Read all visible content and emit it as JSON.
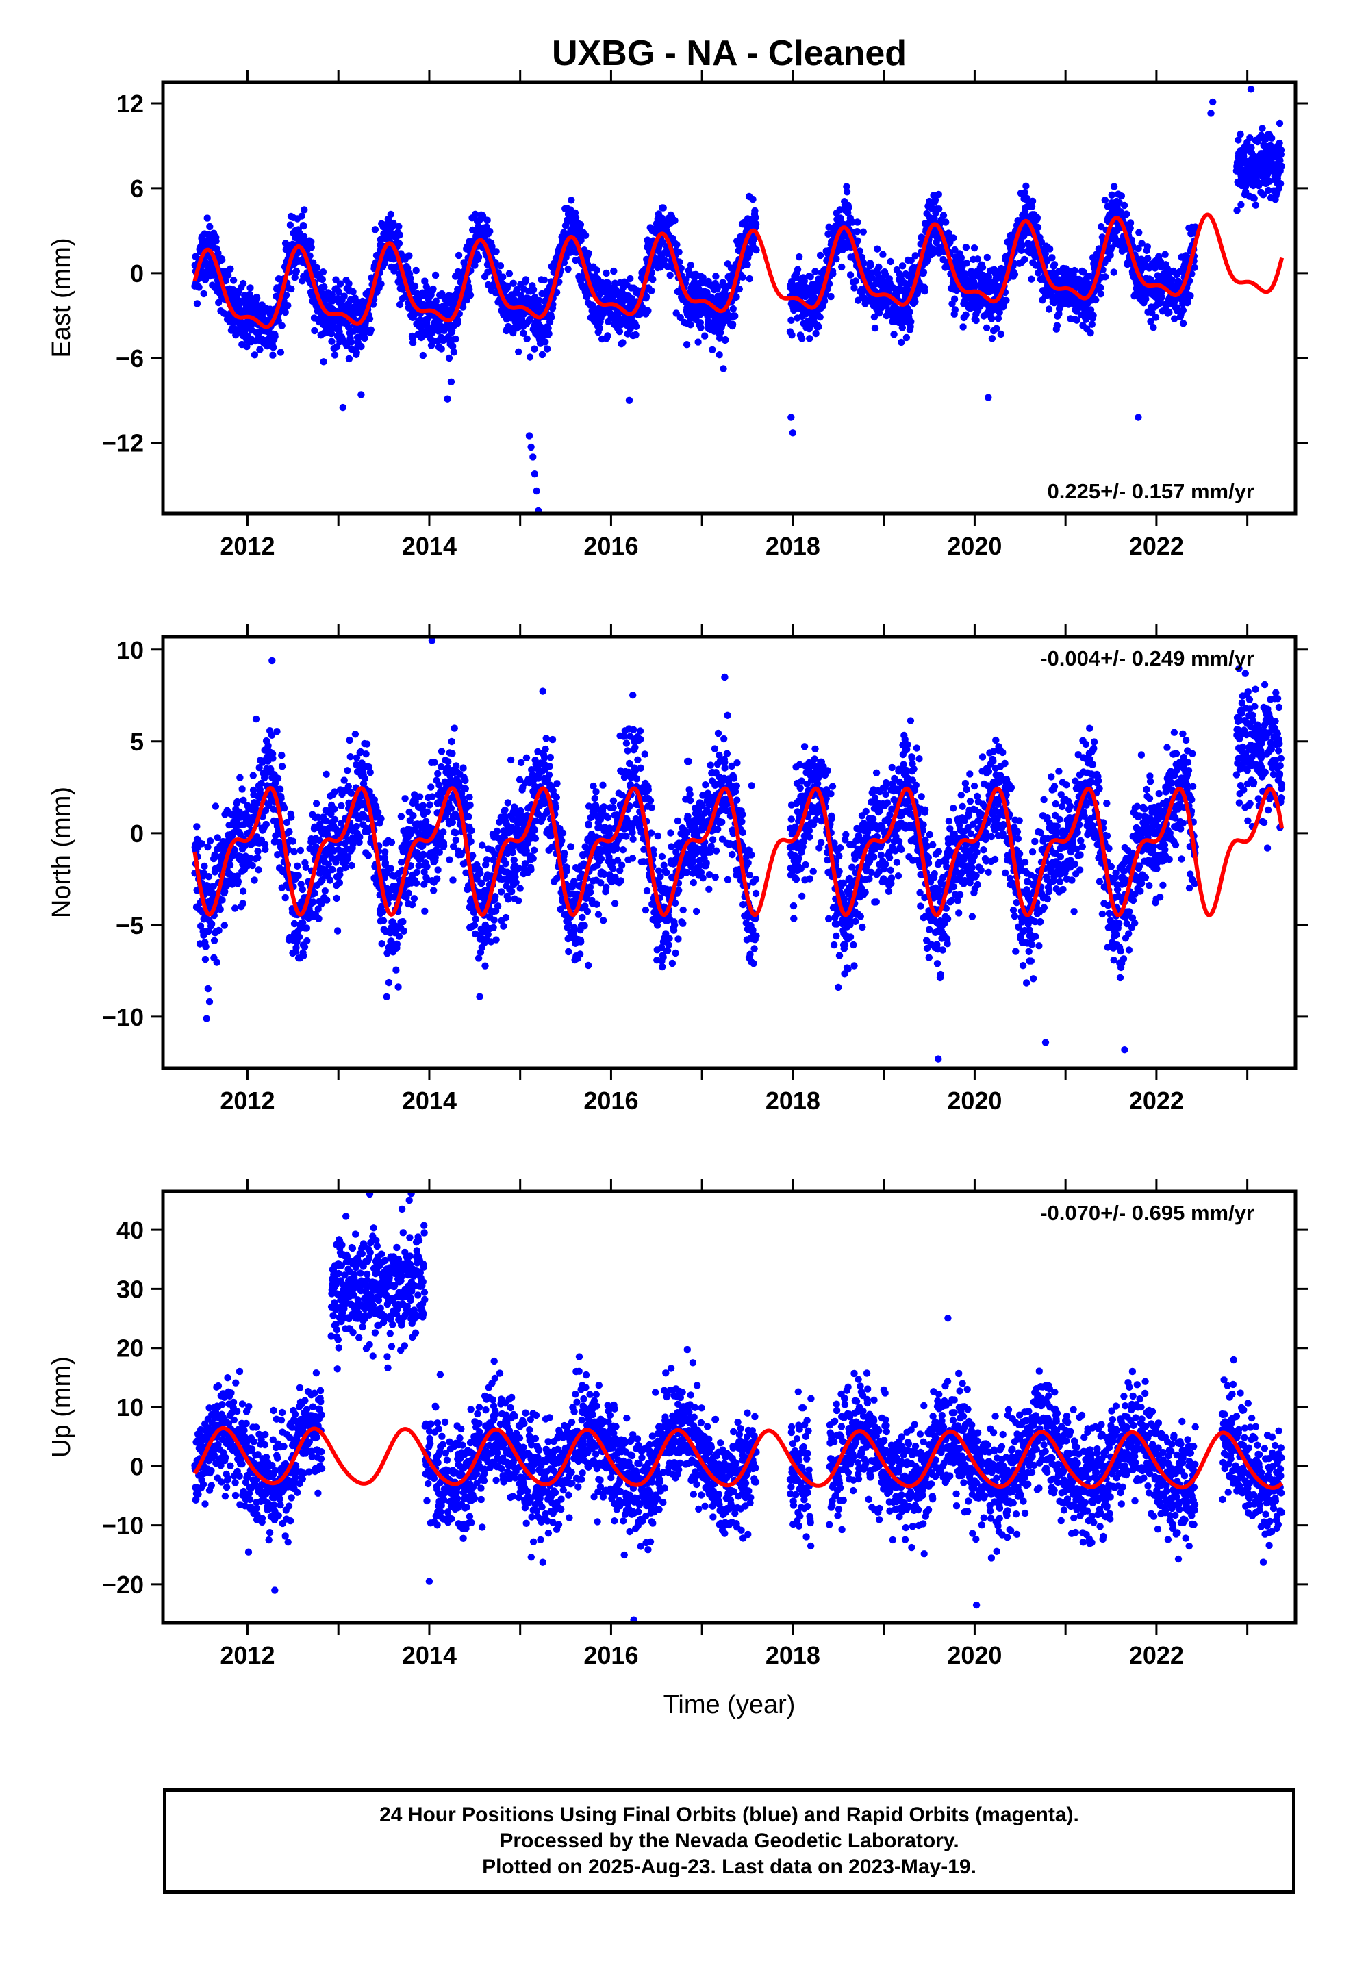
{
  "title": "UXBG  - NA - Cleaned",
  "xlabel": "Time (year)",
  "x_ticks": [
    2012,
    2014,
    2016,
    2018,
    2020,
    2022
  ],
  "colors": {
    "data": "#0000ff",
    "model": "#ff0000",
    "text": "#000000"
  },
  "caption": [
    "24 Hour Positions Using Final Orbits (blue) and Rapid Orbits (magenta).",
    "Processed by the Nevada Geodetic Laboratory.",
    "Plotted on 2025-Aug-23. Last data on 2023-May-19."
  ],
  "chart_data": [
    {
      "type": "scatter",
      "component": "east",
      "ylabel": "East (mm)",
      "xlim": [
        2011.07,
        2023.53
      ],
      "ylim": [
        -17,
        13.5
      ],
      "yticks": [
        -12,
        -6,
        0,
        6,
        12
      ],
      "rate_text": "0.225+/- 0.157 mm/yr",
      "rate_placement": "bottom-right",
      "observations": {
        "start": 2011.42,
        "end": 2023.38,
        "gaps": [
          [
            2017.6,
            2017.97
          ],
          [
            2022.43,
            2022.88
          ]
        ],
        "seasonal_amplitude": 3.2,
        "seasonal_phase_peak": 0.55,
        "scatter": 1.1,
        "offset_after": {
          "year": 2022.88,
          "value": 7.5
        },
        "outliers": [
          [
            2015.1,
            -11.5
          ],
          [
            2015.12,
            -12.3
          ],
          [
            2015.14,
            -13.0
          ],
          [
            2015.16,
            -14.2
          ],
          [
            2015.18,
            -15.4
          ],
          [
            2015.2,
            -16.8
          ],
          [
            2013.05,
            -9.5
          ],
          [
            2013.25,
            -8.6
          ],
          [
            2014.2,
            -8.9
          ],
          [
            2018.0,
            -11.3
          ],
          [
            2017.98,
            -10.2
          ],
          [
            2021.8,
            -10.2
          ],
          [
            2020.15,
            -8.8
          ],
          [
            2016.2,
            -9.0
          ],
          [
            2022.62,
            12.1
          ],
          [
            2022.6,
            11.3
          ],
          [
            2023.04,
            13.0
          ]
        ]
      },
      "model": {
        "rate": 0.225,
        "reference_year": 2017.4,
        "offset": -0.5,
        "annual": {
          "amplitude": 2.5,
          "peak": 0.58
        },
        "semiannual": {
          "amplitude": 1.0,
          "peak": 0.55
        },
        "steps": [
          {
            "year": 2022.88,
            "value": 0.0
          }
        ]
      }
    },
    {
      "type": "scatter",
      "component": "north",
      "ylabel": "North (mm)",
      "xlim": [
        2011.07,
        2023.53
      ],
      "ylim": [
        -12.8,
        10.7
      ],
      "yticks": [
        -10,
        -5,
        0,
        5,
        10
      ],
      "rate_text": "-0.004+/- 0.249 mm/yr",
      "rate_placement": "top-right",
      "observations": {
        "start": 2011.42,
        "end": 2023.38,
        "gaps": [
          [
            2017.6,
            2017.97
          ],
          [
            2022.43,
            2022.88
          ]
        ],
        "scatter": 1.6,
        "offset_after": {
          "year": 2022.88,
          "value": 4.5
        },
        "outliers": [
          [
            2014.03,
            10.5
          ],
          [
            2012.27,
            9.4
          ],
          [
            2017.25,
            8.5
          ],
          [
            2019.6,
            -12.3
          ],
          [
            2021.65,
            -11.8
          ],
          [
            2020.78,
            -11.4
          ],
          [
            2011.55,
            -10.1
          ],
          [
            2015.75,
            -7.2
          ],
          [
            2018.5,
            -8.4
          ]
        ]
      },
      "model": {
        "rate": -0.004,
        "reference_year": 2017.4,
        "offset": -0.8,
        "annual": {
          "amplitude": 2.6,
          "peak": 0.15
        },
        "semiannual": {
          "amplitude": 1.4,
          "peak": 0.3
        },
        "steps": []
      }
    },
    {
      "type": "scatter",
      "component": "up",
      "ylabel": "Up (mm)",
      "xlim": [
        2011.07,
        2023.53
      ],
      "ylim": [
        -26.5,
        46.5
      ],
      "yticks": [
        -20,
        -10,
        0,
        10,
        20,
        30,
        40
      ],
      "rate_text": "-0.070+/- 0.695 mm/yr",
      "rate_placement": "top-right",
      "observations": {
        "start": 2011.42,
        "end": 2023.38,
        "gaps": [
          [
            2012.82,
            2012.92
          ],
          [
            2014.02,
            2014.05
          ],
          [
            2017.6,
            2017.97
          ],
          [
            2018.2,
            2018.4
          ],
          [
            2022.43,
            2022.72
          ]
        ],
        "scatter": 4.5,
        "offset_window": {
          "start": 2012.92,
          "end": 2013.95,
          "value": 30
        },
        "outliers": [
          [
            2013.78,
            45.0
          ],
          [
            2013.7,
            43.5
          ],
          [
            2016.25,
            -26.0
          ],
          [
            2020.02,
            -23.5
          ],
          [
            2012.3,
            -21.0
          ],
          [
            2014.0,
            -19.5
          ],
          [
            2015.65,
            18.5
          ],
          [
            2022.85,
            18.0
          ],
          [
            2016.9,
            17.5
          ],
          [
            2014.12,
            15.5
          ]
        ]
      },
      "model": {
        "rate": -0.07,
        "reference_year": 2017.4,
        "offset": 1.0,
        "annual": {
          "amplitude": 4.6,
          "peak": 0.75
        },
        "semiannual": {
          "amplitude": 0.5,
          "peak": 0.2
        },
        "steps": []
      }
    }
  ]
}
